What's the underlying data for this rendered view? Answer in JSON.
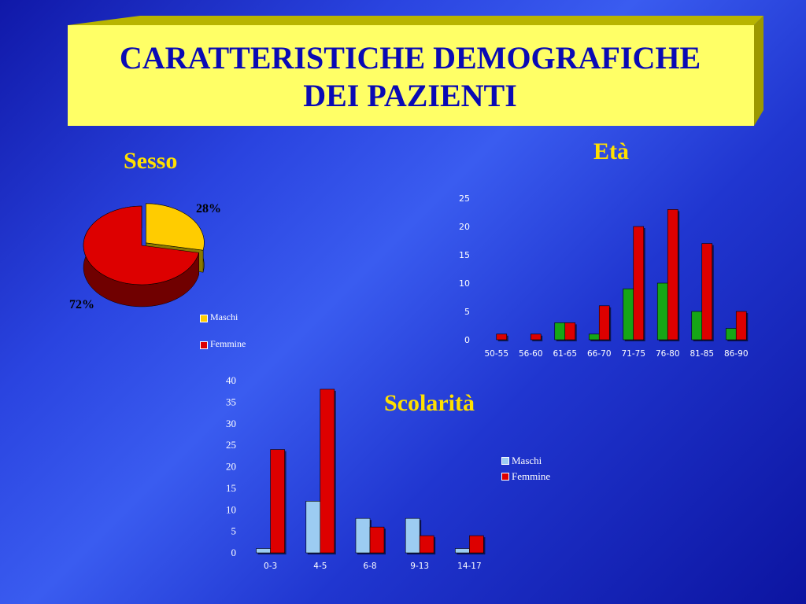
{
  "slide": {
    "title_line1": "CARATTERISTICHE DEMOGRAFICHE",
    "title_line2": "DEI PAZIENTI"
  },
  "colors": {
    "maschi_pie": "#ffcc00",
    "femmine": "#dd0000",
    "maschi_age": "#16a616",
    "maschi_school": "#9cccf2",
    "heading": "#ffe000"
  },
  "chart_data": [
    {
      "type": "pie",
      "title": "Sesso",
      "labels": [
        "Maschi",
        "Femmine"
      ],
      "values": [
        28,
        72
      ],
      "value_labels": [
        "28%",
        "72%"
      ],
      "legend_position": "bottom-right"
    },
    {
      "type": "bar",
      "title": "Età",
      "categories": [
        "50-55",
        "56-60",
        "61-65",
        "66-70",
        "71-75",
        "76-80",
        "81-85",
        "86-90"
      ],
      "series": [
        {
          "values": [
            0,
            0,
            3,
            1,
            9,
            10,
            5,
            2
          ]
        },
        {
          "values": [
            1,
            1,
            3,
            6,
            20,
            23,
            17,
            5
          ]
        }
      ],
      "ylim": [
        0,
        25
      ],
      "yticks": [
        "0",
        "5",
        "10",
        "15",
        "20",
        "25"
      ],
      "grid": false
    },
    {
      "type": "bar",
      "title": "Scolarità",
      "categories": [
        "0-3",
        "4-5",
        "6-8",
        "9-13",
        "14-17"
      ],
      "series": [
        {
          "name": "Maschi",
          "values": [
            1,
            12,
            8,
            8,
            1
          ]
        },
        {
          "name": "Femmine",
          "values": [
            24,
            38,
            6,
            4,
            4
          ]
        }
      ],
      "ylim": [
        0,
        40
      ],
      "yticks": [
        "0",
        "5",
        "10",
        "15",
        "20",
        "25",
        "30",
        "35",
        "40"
      ],
      "grid": false,
      "legend_position": "right"
    }
  ]
}
